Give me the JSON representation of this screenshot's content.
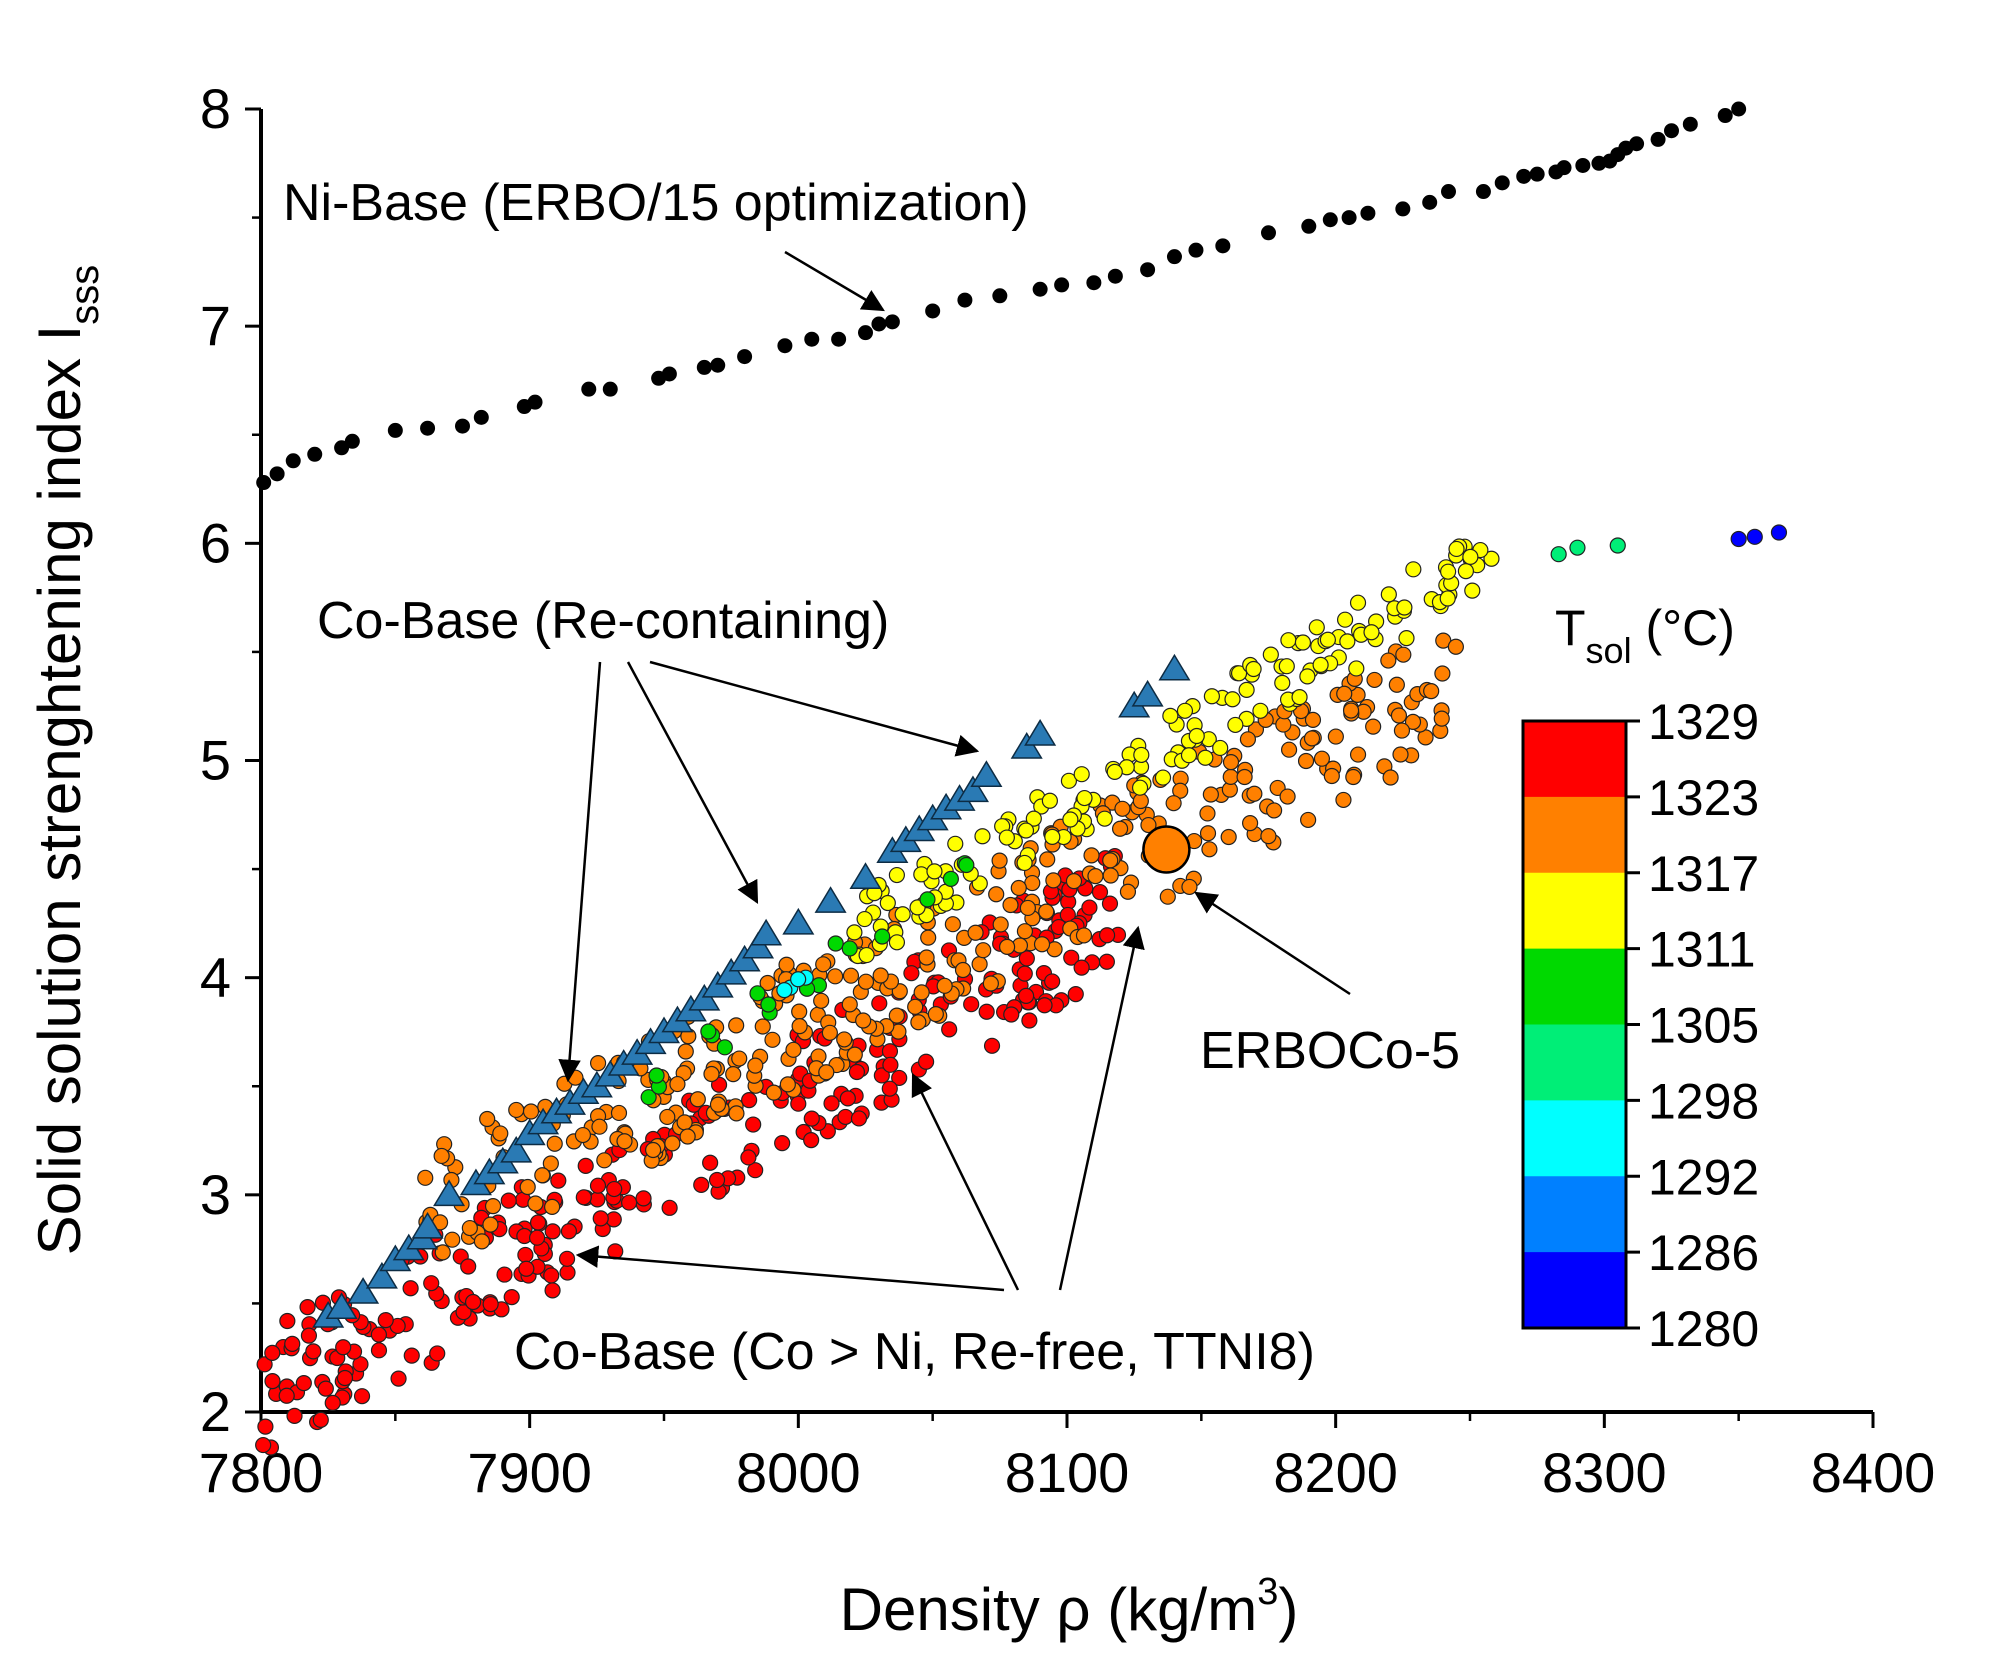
{
  "chart_data": {
    "type": "scatter",
    "title": "",
    "xlabel": "Density ρ (kg/m",
    "xlabel_sup": "3",
    "xlabel_end": ")",
    "ylabel": "Solid solution strenghtening index I",
    "ylabel_sub": "sss",
    "xlim": [
      7800,
      8400
    ],
    "ylim": [
      2,
      8
    ],
    "x_ticks": [
      "7800",
      "7900",
      "8000",
      "8100",
      "8200",
      "8300",
      "8400"
    ],
    "y_ticks": [
      "2",
      "3",
      "4",
      "5",
      "6",
      "7",
      "8"
    ],
    "colorbar": {
      "label_main": "T",
      "label_sub": "sol",
      "label_end": " (°C)",
      "levels": [
        "1329",
        "1323",
        "1317",
        "1311",
        "1305",
        "1298",
        "1292",
        "1286",
        "1280"
      ],
      "colors": [
        "#ff0000",
        "#ff8000",
        "#ffff00",
        "#00d900",
        "#00ee77",
        "#00ffff",
        "#0080ff",
        "#0000ff"
      ]
    },
    "annotations": {
      "ni_base": "Ni-Base (ERBO/15 optimization)",
      "co_re": "Co-Base (Re-containing)",
      "co_free": "Co-Base (Co > Ni, Re-free, TTNI8)",
      "erboco5": "ERBOCo-5"
    },
    "series": [
      {
        "label": "Ni-Base (ERBO/15 optimization)",
        "marker": "circle",
        "color": "#000000",
        "x": [
          7801,
          7806,
          7812,
          7820,
          7830,
          7834,
          7850,
          7862,
          7875,
          7882,
          7898,
          7902,
          7922,
          7930,
          7948,
          7952,
          7965,
          7970,
          7980,
          7995,
          8005,
          8015,
          8025,
          8030,
          8035,
          8050,
          8062,
          8075,
          8090,
          8098,
          8110,
          8118,
          8130,
          8140,
          8148,
          8158,
          8175,
          8190,
          8198,
          8205,
          8212,
          8225,
          8235,
          8242,
          8255,
          8262,
          8270,
          8275,
          8282,
          8285,
          8292,
          8298,
          8302,
          8305,
          8308,
          8312,
          8320,
          8325,
          8332,
          8345,
          8350
        ],
        "y": [
          6.28,
          6.32,
          6.38,
          6.41,
          6.44,
          6.47,
          6.52,
          6.53,
          6.54,
          6.58,
          6.63,
          6.65,
          6.71,
          6.71,
          6.76,
          6.78,
          6.81,
          6.82,
          6.86,
          6.91,
          6.94,
          6.94,
          6.97,
          7.01,
          7.02,
          7.07,
          7.12,
          7.14,
          7.17,
          7.19,
          7.2,
          7.23,
          7.26,
          7.32,
          7.35,
          7.37,
          7.43,
          7.46,
          7.49,
          7.5,
          7.52,
          7.54,
          7.57,
          7.62,
          7.62,
          7.66,
          7.69,
          7.7,
          7.71,
          7.73,
          7.74,
          7.75,
          7.76,
          7.79,
          7.82,
          7.84,
          7.86,
          7.9,
          7.93,
          7.97,
          8.0
        ]
      },
      {
        "label": "Co-Base (Re-containing)",
        "marker": "triangle",
        "color": "#2a7ab4",
        "x": [
          7825,
          7830,
          7838,
          7845,
          7850,
          7855,
          7860,
          7862,
          7870,
          7880,
          7885,
          7890,
          7895,
          7900,
          7905,
          7910,
          7915,
          7920,
          7925,
          7930,
          7935,
          7940,
          7945,
          7950,
          7955,
          7960,
          7965,
          7970,
          7975,
          7980,
          7985,
          7988,
          8000,
          8012,
          8025,
          8035,
          8040,
          8045,
          8050,
          8055,
          8060,
          8065,
          8070,
          8085,
          8090,
          8125,
          8130,
          8140
        ],
        "y": [
          2.44,
          2.48,
          2.55,
          2.62,
          2.7,
          2.75,
          2.8,
          2.85,
          3.0,
          3.05,
          3.1,
          3.15,
          3.2,
          3.28,
          3.33,
          3.38,
          3.42,
          3.47,
          3.5,
          3.55,
          3.6,
          3.65,
          3.7,
          3.75,
          3.8,
          3.85,
          3.9,
          3.96,
          4.02,
          4.08,
          4.14,
          4.2,
          4.25,
          4.35,
          4.46,
          4.58,
          4.63,
          4.68,
          4.73,
          4.78,
          4.82,
          4.86,
          4.93,
          5.06,
          5.12,
          5.25,
          5.3,
          5.42
        ]
      },
      {
        "label": "Co-Base (Co > Ni, Re-free, TTNI8)",
        "marker": "circle",
        "color_by": "T_sol",
        "bands": [
          {
            "color": "#ff0000",
            "x0": 7800,
            "y0": 2.08,
            "x1": 8120,
            "y1": 4.32,
            "width": 0.3,
            "count": 300
          },
          {
            "color": "#ff8000",
            "x0": 7860,
            "y0": 2.9,
            "x1": 8245,
            "y1": 5.35,
            "width": 0.3,
            "count": 360
          },
          {
            "color": "#ffff00",
            "x0": 8020,
            "y0": 4.2,
            "x1": 8258,
            "y1": 5.95,
            "width": 0.16,
            "count": 160
          },
          {
            "color": "#00d900",
            "x0": 7940,
            "y0": 3.48,
            "x1": 8070,
            "y1": 4.55,
            "width": 0.08,
            "count": 18
          },
          {
            "color": "#00ffff",
            "x0": 7985,
            "y0": 3.9,
            "x1": 8010,
            "y1": 4.05,
            "width": 0.03,
            "count": 4
          }
        ],
        "points": [
          {
            "x": 8283,
            "y": 5.95,
            "color": "#00ee77"
          },
          {
            "x": 8290,
            "y": 5.98,
            "color": "#00ee77"
          },
          {
            "x": 8305,
            "y": 5.99,
            "color": "#00ee77"
          },
          {
            "x": 8350,
            "y": 6.02,
            "color": "#0000ff"
          },
          {
            "x": 8356,
            "y": 6.03,
            "color": "#0000ff"
          },
          {
            "x": 8365,
            "y": 6.05,
            "color": "#0000ff"
          }
        ]
      },
      {
        "label": "ERBOCo-5",
        "marker": "circle",
        "color": "#ff8000",
        "x": [
          8137
        ],
        "y": [
          4.59
        ]
      }
    ]
  }
}
